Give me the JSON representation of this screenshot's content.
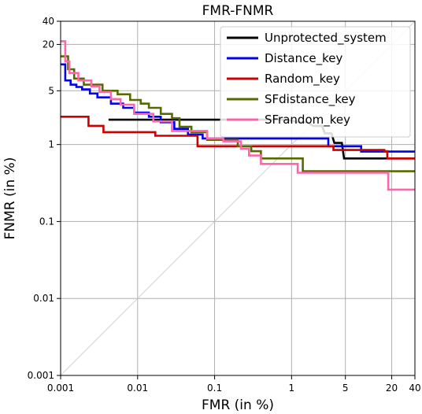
{
  "chart_data": {
    "type": "line",
    "title": "FMR-FNMR",
    "xlabel": "FMR (in %)",
    "ylabel": "FNMR (in %)",
    "xscale": "log",
    "yscale": "log",
    "xlim": [
      0.001,
      40
    ],
    "ylim": [
      0.001,
      40
    ],
    "grid": true,
    "legend_position": "top-right",
    "diagonal_reference_line": true,
    "xticks": [
      {
        "value": 0.001,
        "label": "0.001"
      },
      {
        "value": 0.01,
        "label": "0.01"
      },
      {
        "value": 0.1,
        "label": "0.1"
      },
      {
        "value": 1,
        "label": "1"
      },
      {
        "value": 5,
        "label": "5"
      },
      {
        "value": 20,
        "label": "20"
      },
      {
        "value": 40,
        "label": "40"
      }
    ],
    "yticks": [
      {
        "value": 0.001,
        "label": "0.001"
      },
      {
        "value": 0.01,
        "label": "0.01"
      },
      {
        "value": 0.1,
        "label": "0.1"
      },
      {
        "value": 1,
        "label": "1"
      },
      {
        "value": 5,
        "label": "5"
      },
      {
        "value": 20,
        "label": "20"
      },
      {
        "value": 40,
        "label": "40"
      }
    ],
    "series": [
      {
        "name": "Unprotected_system",
        "color": "#000000",
        "points": [
          [
            0.0042,
            2.1
          ],
          [
            0.9,
            2.1
          ],
          [
            1.2,
            1.95
          ],
          [
            1.6,
            1.95
          ],
          [
            1.9,
            1.75
          ],
          [
            2.5,
            1.75
          ],
          [
            2.7,
            1.4
          ],
          [
            3.3,
            1.4
          ],
          [
            3.6,
            1.05
          ],
          [
            4.5,
            1.05
          ],
          [
            4.8,
            0.66
          ],
          [
            40,
            0.66
          ]
        ]
      },
      {
        "name": "Distance_key",
        "color": "#0000ee",
        "points": [
          [
            0.001,
            11.0
          ],
          [
            0.00115,
            11.0
          ],
          [
            0.00115,
            6.8
          ],
          [
            0.00135,
            6.8
          ],
          [
            0.00135,
            6.0
          ],
          [
            0.0016,
            6.0
          ],
          [
            0.0016,
            5.6
          ],
          [
            0.0019,
            5.6
          ],
          [
            0.0019,
            5.2
          ],
          [
            0.0024,
            5.2
          ],
          [
            0.0024,
            4.6
          ],
          [
            0.003,
            4.6
          ],
          [
            0.003,
            4.1
          ],
          [
            0.0045,
            4.1
          ],
          [
            0.0045,
            3.4
          ],
          [
            0.0065,
            3.4
          ],
          [
            0.0065,
            3.0
          ],
          [
            0.009,
            3.0
          ],
          [
            0.009,
            2.6
          ],
          [
            0.014,
            2.6
          ],
          [
            0.014,
            2.3
          ],
          [
            0.02,
            2.3
          ],
          [
            0.02,
            1.95
          ],
          [
            0.03,
            1.95
          ],
          [
            0.03,
            1.6
          ],
          [
            0.045,
            1.6
          ],
          [
            0.045,
            1.35
          ],
          [
            0.07,
            1.35
          ],
          [
            0.07,
            1.2
          ],
          [
            3.0,
            1.2
          ],
          [
            3.0,
            0.95
          ],
          [
            8.0,
            0.95
          ],
          [
            8.0,
            0.81
          ],
          [
            40,
            0.81
          ]
        ]
      },
      {
        "name": "Random_key",
        "color": "#cc0000",
        "points": [
          [
            0.001,
            2.3
          ],
          [
            0.0023,
            2.3
          ],
          [
            0.0023,
            1.75
          ],
          [
            0.0036,
            1.75
          ],
          [
            0.0036,
            1.45
          ],
          [
            0.017,
            1.45
          ],
          [
            0.017,
            1.3
          ],
          [
            0.06,
            1.3
          ],
          [
            0.06,
            0.95
          ],
          [
            3.5,
            0.95
          ],
          [
            3.5,
            0.85
          ],
          [
            16,
            0.85
          ],
          [
            16,
            0.82
          ],
          [
            17.5,
            0.82
          ],
          [
            17.5,
            0.66
          ],
          [
            40,
            0.66
          ]
        ]
      },
      {
        "name": "SFdistance_key",
        "color": "#556b00",
        "points": [
          [
            0.001,
            14.0
          ],
          [
            0.00125,
            14.0
          ],
          [
            0.00125,
            9.5
          ],
          [
            0.0015,
            9.5
          ],
          [
            0.0015,
            7.2
          ],
          [
            0.002,
            7.2
          ],
          [
            0.002,
            6.0
          ],
          [
            0.0035,
            6.0
          ],
          [
            0.0035,
            5.0
          ],
          [
            0.0055,
            5.0
          ],
          [
            0.0055,
            4.5
          ],
          [
            0.008,
            4.5
          ],
          [
            0.008,
            3.8
          ],
          [
            0.011,
            3.8
          ],
          [
            0.011,
            3.4
          ],
          [
            0.014,
            3.4
          ],
          [
            0.014,
            3.0
          ],
          [
            0.02,
            3.0
          ],
          [
            0.02,
            2.5
          ],
          [
            0.028,
            2.5
          ],
          [
            0.028,
            2.2
          ],
          [
            0.035,
            2.2
          ],
          [
            0.035,
            1.7
          ],
          [
            0.05,
            1.7
          ],
          [
            0.05,
            1.45
          ],
          [
            0.08,
            1.45
          ],
          [
            0.08,
            1.15
          ],
          [
            0.2,
            1.15
          ],
          [
            0.2,
            0.95
          ],
          [
            0.3,
            0.95
          ],
          [
            0.3,
            0.82
          ],
          [
            0.4,
            0.82
          ],
          [
            0.4,
            0.66
          ],
          [
            1.4,
            0.66
          ],
          [
            1.4,
            0.45
          ],
          [
            40,
            0.45
          ]
        ]
      },
      {
        "name": "SFrandom_key",
        "color": "#ff66aa",
        "points": [
          [
            0.001,
            22.0
          ],
          [
            0.00115,
            22.0
          ],
          [
            0.00115,
            12.0
          ],
          [
            0.0013,
            12.0
          ],
          [
            0.0013,
            8.5
          ],
          [
            0.0017,
            8.5
          ],
          [
            0.0017,
            6.8
          ],
          [
            0.0025,
            6.8
          ],
          [
            0.0025,
            5.7
          ],
          [
            0.0032,
            5.7
          ],
          [
            0.0032,
            4.8
          ],
          [
            0.0045,
            4.8
          ],
          [
            0.0045,
            3.9
          ],
          [
            0.006,
            3.9
          ],
          [
            0.006,
            3.3
          ],
          [
            0.009,
            3.3
          ],
          [
            0.009,
            2.5
          ],
          [
            0.016,
            2.5
          ],
          [
            0.016,
            2.0
          ],
          [
            0.028,
            2.0
          ],
          [
            0.028,
            1.5
          ],
          [
            0.08,
            1.5
          ],
          [
            0.08,
            1.2
          ],
          [
            0.13,
            1.2
          ],
          [
            0.13,
            1.1
          ],
          [
            0.22,
            1.1
          ],
          [
            0.22,
            0.88
          ],
          [
            0.28,
            0.88
          ],
          [
            0.28,
            0.72
          ],
          [
            0.4,
            0.72
          ],
          [
            0.4,
            0.56
          ],
          [
            1.2,
            0.56
          ],
          [
            1.2,
            0.43
          ],
          [
            18.0,
            0.43
          ],
          [
            18.0,
            0.26
          ],
          [
            40,
            0.26
          ]
        ]
      }
    ]
  }
}
